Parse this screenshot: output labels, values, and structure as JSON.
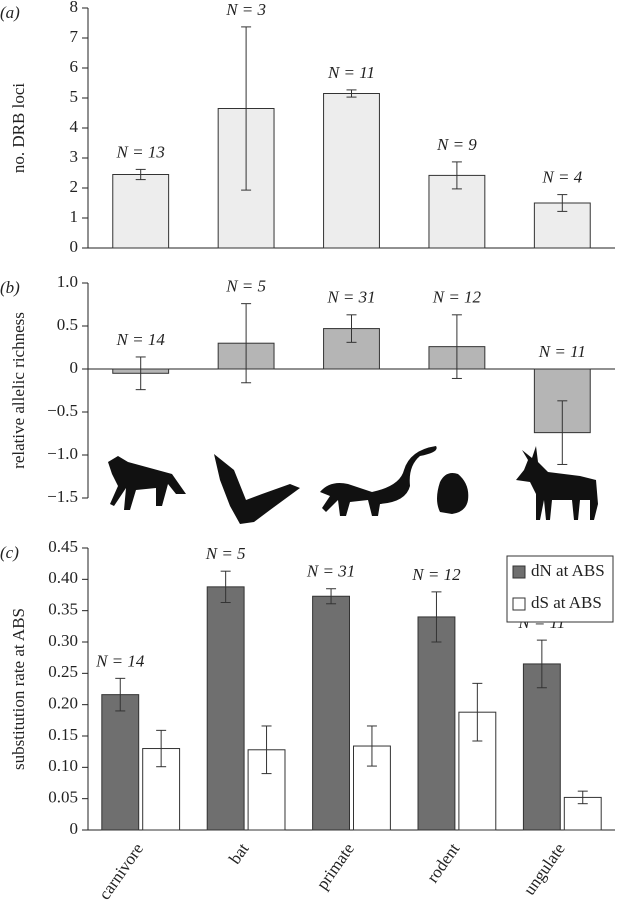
{
  "chart_data": [
    {
      "type": "bar",
      "label": "(a)",
      "ylabel": "no. DRB loci",
      "color": "#ededed",
      "values": [
        2.45,
        4.65,
        5.15,
        2.42,
        1.5
      ],
      "errors": [
        0.17,
        2.72,
        0.12,
        0.45,
        0.28
      ],
      "annotations": [
        "N = 13",
        "N = 3",
        "N = 11",
        "N = 9",
        "N = 4"
      ],
      "ylim": [
        0,
        8
      ],
      "yticks": [
        0,
        1,
        2,
        3,
        4,
        5,
        6,
        7,
        8
      ]
    },
    {
      "type": "bar",
      "label": "(b)",
      "ylabel": "relative allelic richness",
      "color": "#b5b5b5",
      "values": [
        -0.05,
        0.3,
        0.47,
        0.26,
        -0.74
      ],
      "errors": [
        0.19,
        0.46,
        0.16,
        0.37,
        0.37
      ],
      "annotations": [
        "N = 14",
        "N = 5",
        "N = 31",
        "N = 12",
        "N = 11"
      ],
      "ylim": [
        -1.5,
        1.0
      ],
      "yticks": [
        {
          "value": -1.5,
          "label": "−1.5"
        },
        {
          "value": -1.0,
          "label": "−1.0"
        },
        {
          "value": -0.5,
          "label": "−0.5"
        },
        0,
        0.5,
        {
          "value": 1.0,
          "label": "1.0"
        }
      ]
    },
    {
      "type": "bar",
      "label": "(c)",
      "ylabel": "substitution rate at ABS",
      "categories": [
        "carnivore",
        "bat",
        "primate",
        "rodent",
        "ungulate"
      ],
      "series": [
        {
          "name": "dN at ABS",
          "color": "#6f6f6f",
          "values": [
            0.216,
            0.388,
            0.373,
            0.34,
            0.265
          ],
          "errors": [
            0.026,
            0.025,
            0.012,
            0.04,
            0.038
          ]
        },
        {
          "name": "dS at ABS",
          "color": "#ffffff",
          "values": [
            0.13,
            0.128,
            0.134,
            0.188,
            0.052
          ],
          "errors": [
            0.029,
            0.038,
            0.032,
            0.046,
            0.01
          ]
        }
      ],
      "annotations": [
        "N = 14",
        "N = 5",
        "N = 31",
        "N = 12",
        "N = 11"
      ],
      "legend": "upper right",
      "ylim": [
        0,
        0.45
      ],
      "yticks": [
        0,
        0.05,
        {
          "value": 0.1,
          "label": "0.10"
        },
        0.15,
        {
          "value": 0.2,
          "label": "0.20"
        },
        0.25,
        {
          "value": 0.3,
          "label": "0.30"
        },
        0.35,
        {
          "value": 0.4,
          "label": "0.40"
        },
        0.45
      ]
    }
  ]
}
